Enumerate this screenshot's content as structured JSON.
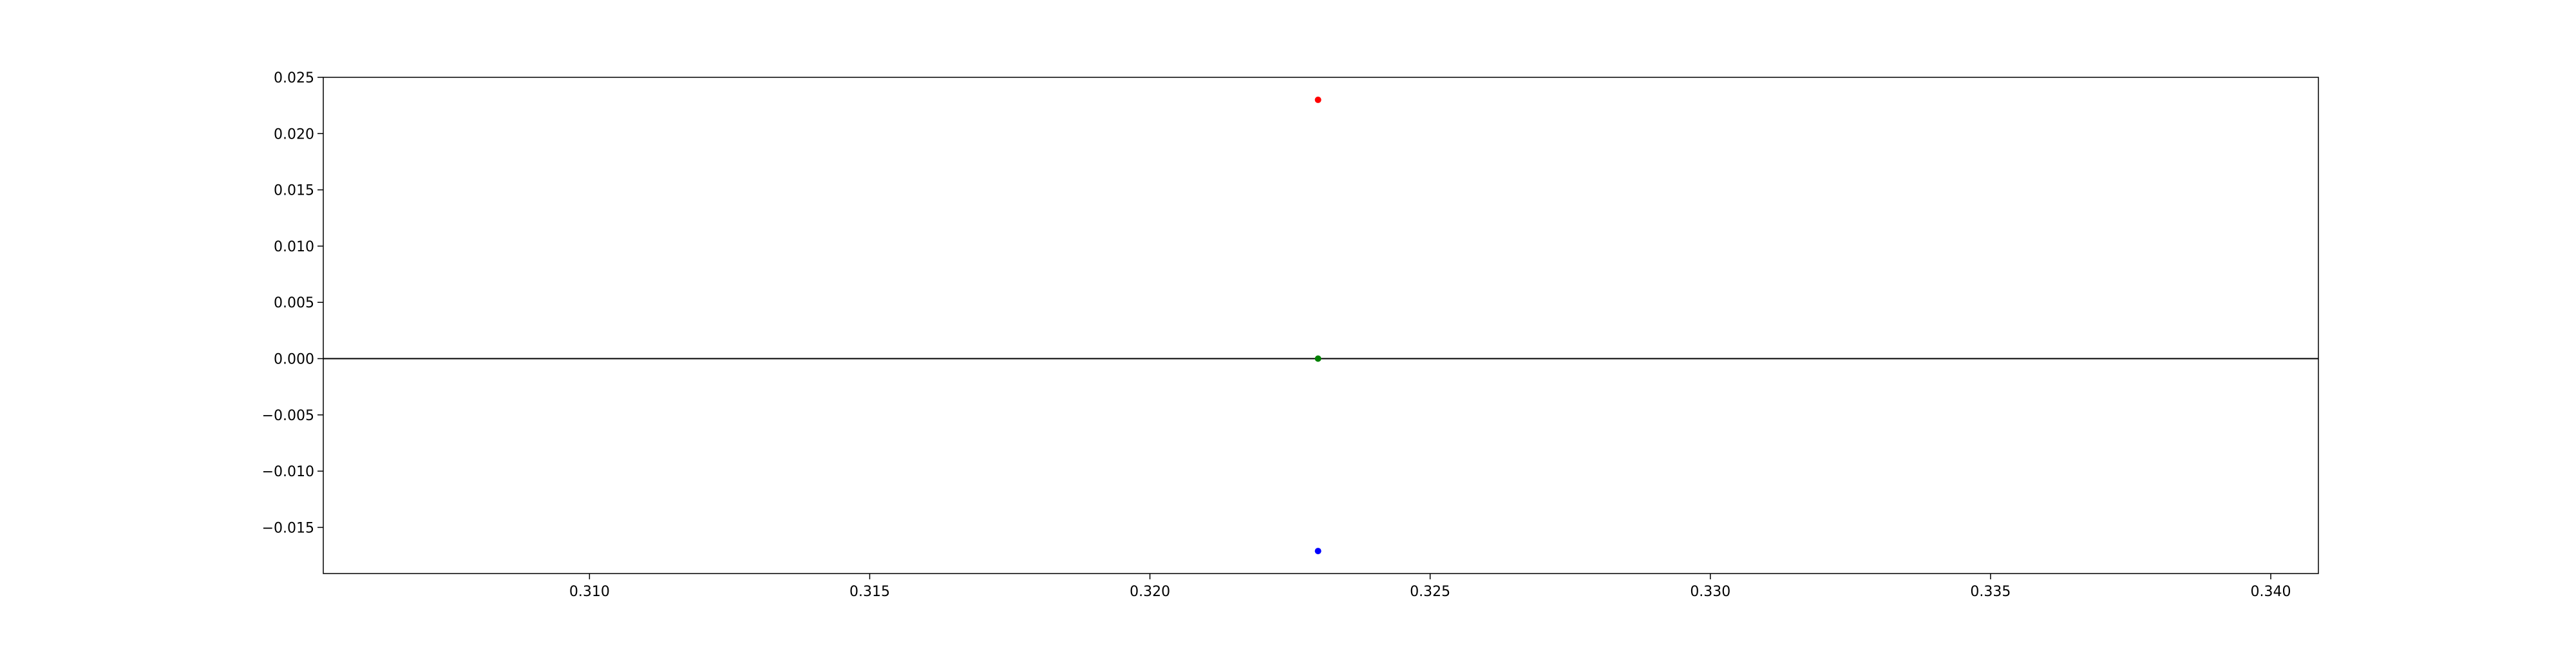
{
  "chart_data": {
    "type": "scatter",
    "title": "",
    "xlabel": "",
    "ylabel": "",
    "xlim": [
      0.30525,
      0.34085
    ],
    "ylim": [
      -0.0191,
      0.025
    ],
    "grid": false,
    "x_ticks": [
      {
        "value": 0.31,
        "label": "0.310"
      },
      {
        "value": 0.315,
        "label": "0.315"
      },
      {
        "value": 0.32,
        "label": "0.320"
      },
      {
        "value": 0.325,
        "label": "0.325"
      },
      {
        "value": 0.33,
        "label": "0.330"
      },
      {
        "value": 0.335,
        "label": "0.335"
      },
      {
        "value": 0.34,
        "label": "0.340"
      }
    ],
    "y_ticks": [
      {
        "value": 0.025,
        "label": "0.025"
      },
      {
        "value": 0.02,
        "label": "0.020"
      },
      {
        "value": 0.015,
        "label": "0.015"
      },
      {
        "value": 0.01,
        "label": "0.010"
      },
      {
        "value": 0.005,
        "label": "0.005"
      },
      {
        "value": 0.0,
        "label": "0.000"
      },
      {
        "value": -0.005,
        "label": "−0.005"
      },
      {
        "value": -0.01,
        "label": "−0.010"
      },
      {
        "value": -0.015,
        "label": "−0.015"
      }
    ],
    "reference_lines": [
      {
        "axis": "y",
        "value": 0.0,
        "color": "#000000"
      }
    ],
    "series": [
      {
        "color": "#ff0000",
        "points": [
          {
            "x": 0.323,
            "y": 0.023
          }
        ]
      },
      {
        "color": "#008000",
        "points": [
          {
            "x": 0.323,
            "y": 0.0
          }
        ]
      },
      {
        "color": "#0000ff",
        "points": [
          {
            "x": 0.323,
            "y": -0.0171
          }
        ]
      }
    ]
  }
}
